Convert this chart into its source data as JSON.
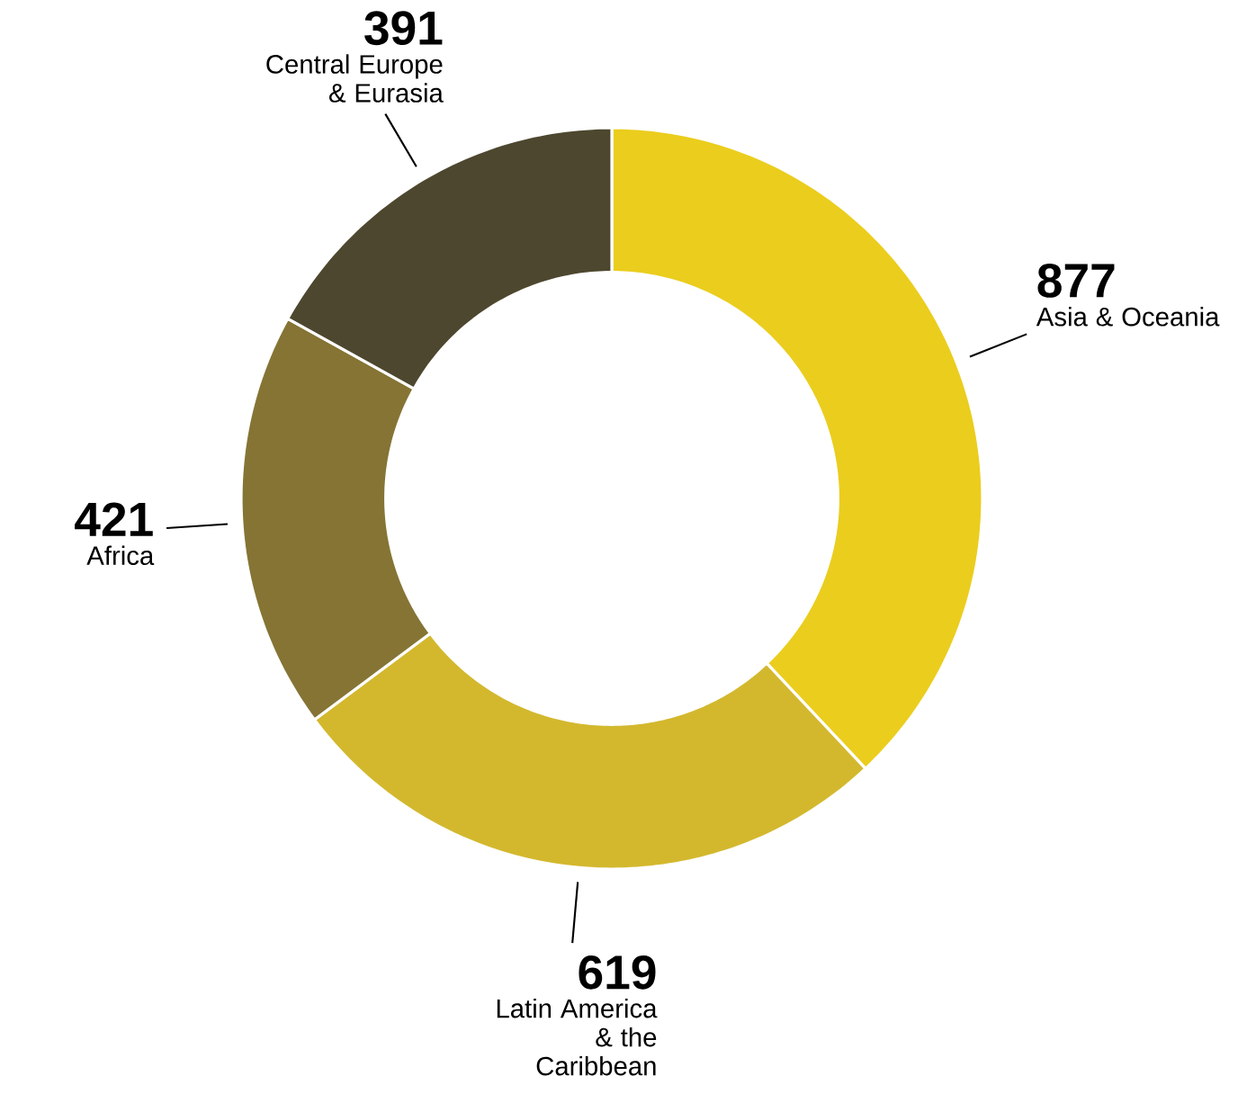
{
  "chart_data": {
    "type": "donut",
    "categories": [
      "Asia & Oceania",
      "Latin America & the Caribbean",
      "Africa",
      "Central Europe & Eurasia"
    ],
    "values": [
      877,
      619,
      421,
      391
    ],
    "colors": [
      "#ebcd1d",
      "#d3b82e",
      "#857434",
      "#4d472f"
    ],
    "data_labels": true
  }
}
